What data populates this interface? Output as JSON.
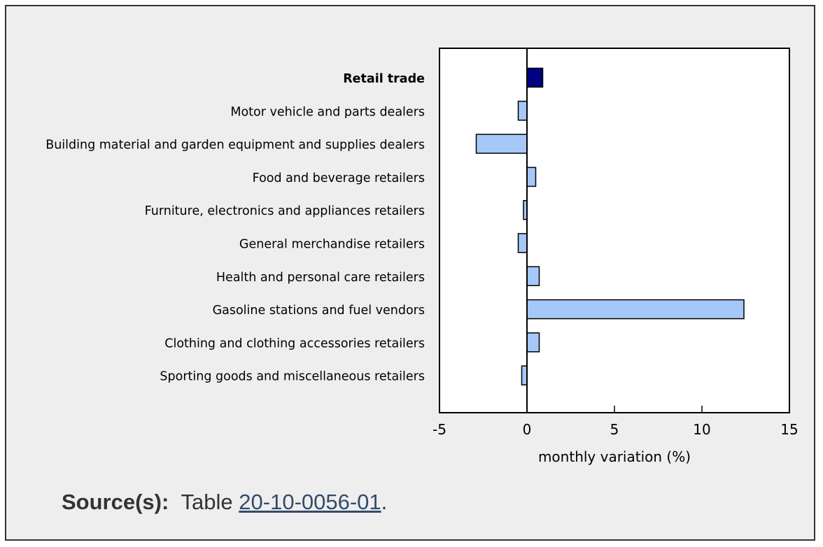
{
  "chart_data": {
    "type": "bar",
    "orientation": "horizontal",
    "categories": [
      "Retail trade",
      "Motor vehicle and parts dealers",
      "Building material and garden equipment and supplies dealers",
      "Food and beverage retailers",
      "Furniture, electronics and appliances retailers",
      "General merchandise retailers",
      "Health and personal care retailers",
      "Gasoline stations and fuel vendors",
      "Clothing and clothing accessories retailers",
      "Sporting goods and miscellaneous retailers"
    ],
    "values": [
      0.9,
      -0.5,
      -2.9,
      0.5,
      -0.2,
      -0.5,
      0.7,
      12.4,
      0.7,
      -0.3
    ],
    "highlight": "Retail trade",
    "xlabel": "monthly variation (%)",
    "xlim": [
      -5,
      15
    ],
    "xticks": [
      -5,
      0,
      5,
      10,
      15
    ],
    "grid": false,
    "colors": {
      "highlight": "#000080",
      "bars": "#a6c8f8",
      "outline": "#000000"
    }
  },
  "source": {
    "label": "Source(s):",
    "prefix": "Table",
    "link_text": "20-10-0056-01",
    "suffix": "."
  }
}
